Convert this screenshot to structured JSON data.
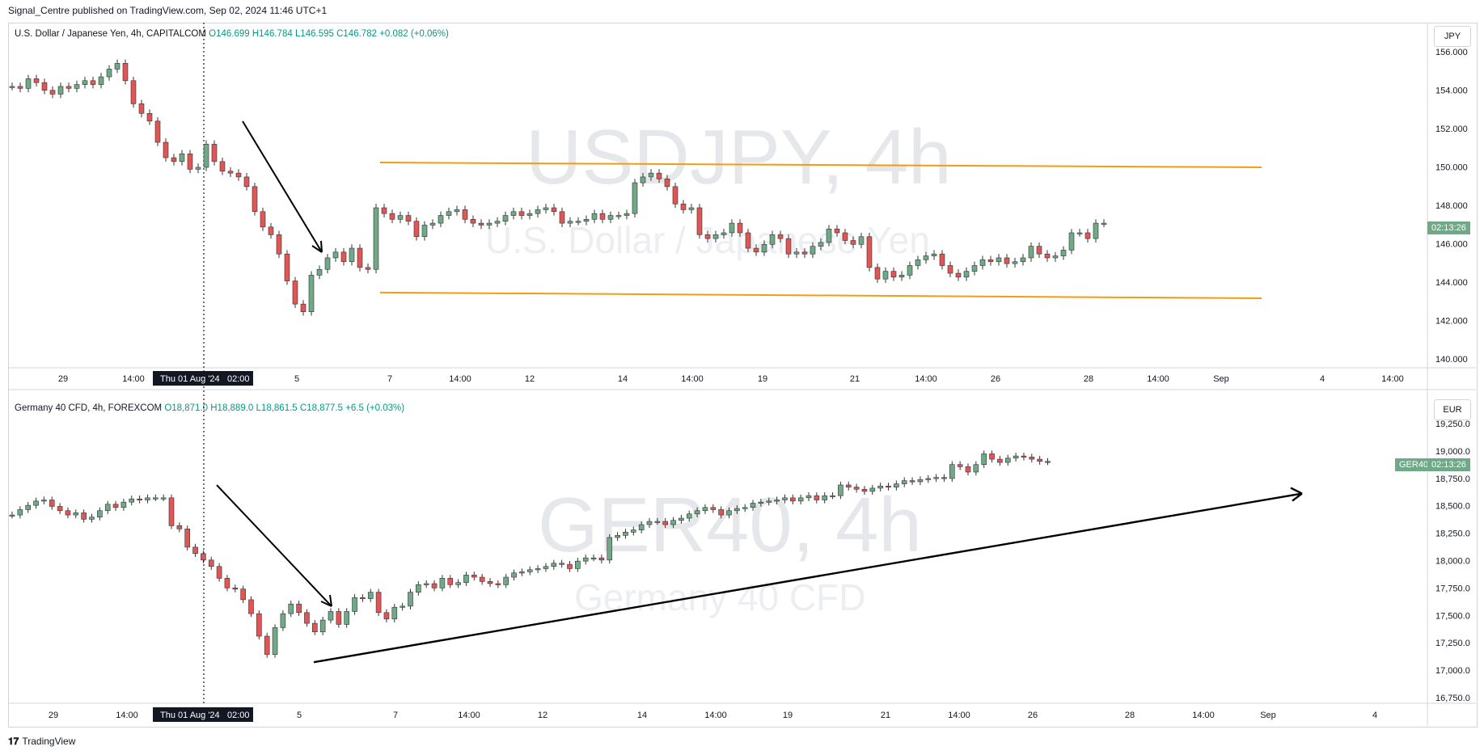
{
  "header": {
    "published": "Signal_Centre published on TradingView.com, Sep 02, 2024 11:46 UTC+1"
  },
  "footer": {
    "brand": "TradingView"
  },
  "crosshair_label": {
    "date": "Thu 01 Aug '24",
    "time": "02:00"
  },
  "colors": {
    "up": "#6fa988",
    "down": "#e05555",
    "channel": "#f39c12",
    "arrow": "#000000",
    "tag": "#6fa988"
  },
  "panes": [
    {
      "id": "usdjpy",
      "legend": {
        "name": "U.S. Dollar / Japanese Yen, 4h, CAPITALCOM",
        "o": "O146.699",
        "h": "H146.784",
        "l": "L146.595",
        "c": "C146.782",
        "chg": "+0.082 (+0.06%)"
      },
      "watermark": {
        "big": "USDJPY, 4h",
        "small": "U.S. Dollar / Japanese Yen"
      },
      "unit": "JPY",
      "price_tag": "02:13:26",
      "price_labels": [
        "156.000",
        "154.000",
        "152.000",
        "150.000",
        "148.000",
        "146.000",
        "144.000",
        "142.000",
        "140.000"
      ],
      "time_labels": [
        "29",
        "14:00",
        "5",
        "7",
        "14:00",
        "12",
        "14",
        "14:00",
        "19",
        "21",
        "14:00",
        "26",
        "28",
        "14:00",
        "Sep",
        "4",
        "14:00"
      ]
    },
    {
      "id": "ger40",
      "legend": {
        "name": "Germany 40 CFD, 4h, FOREXCOM",
        "o": "O18,871.0",
        "h": "H18,889.0",
        "l": "L18,861.5",
        "c": "C18,877.5",
        "chg": "+6.5 (+0.03%)"
      },
      "watermark": {
        "big": "GER40, 4h",
        "small": "Germany 40 CFD"
      },
      "unit": "EUR",
      "price_tag": {
        "symbol": "GER40",
        "time": "02:13:26"
      },
      "price_labels": [
        "19,250.0",
        "19,000.0",
        "18,750.0",
        "18,500.0",
        "18,250.0",
        "18,000.0",
        "17,750.0",
        "17,500.0",
        "17,250.0",
        "17,000.0",
        "16,750.0"
      ],
      "time_labels": [
        "29",
        "14:00",
        "5",
        "7",
        "14:00",
        "12",
        "14",
        "14:00",
        "19",
        "21",
        "14:00",
        "26",
        "28",
        "14:00",
        "Sep",
        "4"
      ]
    }
  ],
  "chart_data": [
    {
      "type": "candlestick",
      "title": "U.S. Dollar / Japanese Yen, 4h, CAPITALCOM",
      "ylim": [
        139.5,
        156.5
      ],
      "closes": [
        153.9,
        153.8,
        154.3,
        154.1,
        153.7,
        153.5,
        153.9,
        153.8,
        154.0,
        154.2,
        154.0,
        154.4,
        154.8,
        155.1,
        154.2,
        153.0,
        152.5,
        152.1,
        151.0,
        150.2,
        150.0,
        150.4,
        149.6,
        149.7,
        150.9,
        150.0,
        149.5,
        149.4,
        149.2,
        148.7,
        147.4,
        146.6,
        146.2,
        145.2,
        143.8,
        142.6,
        142.2,
        144.1,
        144.4,
        145.0,
        145.3,
        144.8,
        145.5,
        144.5,
        144.4,
        147.6,
        147.3,
        147.0,
        147.2,
        146.9,
        146.1,
        146.7,
        146.8,
        147.2,
        147.4,
        147.5,
        147.0,
        146.8,
        146.7,
        146.8,
        146.9,
        147.2,
        147.4,
        147.2,
        147.3,
        147.5,
        147.6,
        147.4,
        146.8,
        146.9,
        146.9,
        147.0,
        147.3,
        147.0,
        147.2,
        147.2,
        147.3,
        148.9,
        149.2,
        149.4,
        149.1,
        148.7,
        147.8,
        147.5,
        147.6,
        146.2,
        146.0,
        146.2,
        146.3,
        146.8,
        146.3,
        145.5,
        145.3,
        145.7,
        146.2,
        146.0,
        145.2,
        145.3,
        145.2,
        145.6,
        145.8,
        146.5,
        146.3,
        145.9,
        145.7,
        146.1,
        144.5,
        143.9,
        144.3,
        144.0,
        144.1,
        144.6,
        144.9,
        145.1,
        145.2,
        144.6,
        144.2,
        144.0,
        144.3,
        144.6,
        144.9,
        144.8,
        145.0,
        144.7,
        144.8,
        145.0,
        145.6,
        145.2,
        145.0,
        145.1,
        145.4,
        146.3,
        146.3,
        146.0,
        146.8,
        146.8
      ],
      "channel": {
        "upper": [
          149.95,
          149.7
        ],
        "lower": [
          143.2,
          142.9
        ]
      }
    },
    {
      "type": "candlestick",
      "title": "Germany 40 CFD, 4h, FOREXCOM",
      "ylim": [
        16700,
        19300
      ],
      "closes": [
        18380,
        18430,
        18470,
        18510,
        18520,
        18460,
        18420,
        18380,
        18400,
        18340,
        18360,
        18420,
        18480,
        18450,
        18500,
        18530,
        18520,
        18540,
        18540,
        18540,
        18280,
        18250,
        18080,
        18020,
        17960,
        17900,
        17790,
        17700,
        17690,
        17590,
        17460,
        17250,
        17080,
        17330,
        17460,
        17550,
        17470,
        17370,
        17290,
        17400,
        17480,
        17360,
        17480,
        17610,
        17600,
        17660,
        17470,
        17410,
        17520,
        17530,
        17660,
        17730,
        17740,
        17700,
        17790,
        17730,
        17750,
        17820,
        17800,
        17760,
        17740,
        17730,
        17800,
        17840,
        17850,
        17870,
        17880,
        17900,
        17930,
        17920,
        17880,
        17950,
        17980,
        17980,
        17960,
        18170,
        18190,
        18220,
        18240,
        18290,
        18320,
        18320,
        18290,
        18330,
        18350,
        18390,
        18420,
        18450,
        18430,
        18380,
        18420,
        18440,
        18450,
        18490,
        18500,
        18510,
        18520,
        18540,
        18510,
        18540,
        18560,
        18520,
        18560,
        18560,
        18660,
        18640,
        18620,
        18600,
        18630,
        18650,
        18640,
        18670,
        18700,
        18690,
        18710,
        18720,
        18730,
        18720,
        18850,
        18830,
        18780,
        18850,
        18950,
        18900,
        18870,
        18910,
        18930,
        18920,
        18900,
        18880,
        18877.5
      ],
      "trendline": {
        "from": [
          17008,
          "start"
        ],
        "to": [
          18580,
          "end"
        ]
      }
    }
  ]
}
